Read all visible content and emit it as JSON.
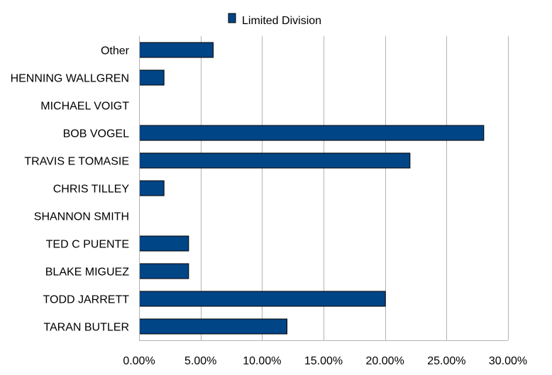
{
  "chart_data": {
    "type": "bar",
    "orientation": "horizontal",
    "categories": [
      "Other",
      "HENNING WALLGREN",
      "MICHAEL VOIGT",
      "BOB VOGEL",
      "TRAVIS E TOMASIE",
      "CHRIS TILLEY",
      "SHANNON SMITH",
      "TED C PUENTE",
      "BLAKE MIGUEZ",
      "TODD JARRETT",
      "TARAN BUTLER"
    ],
    "series": [
      {
        "name": "Limited Division",
        "color": "#004586",
        "values": [
          6,
          2,
          0,
          28,
          22,
          2,
          0,
          4,
          4,
          20,
          12
        ]
      }
    ],
    "xlim": [
      0,
      30
    ],
    "xticks": [
      "0.00%",
      "5.00%",
      "10.00%",
      "15.00%",
      "20.00%",
      "25.00%",
      "30.00%"
    ],
    "xtick_values": [
      0,
      5,
      10,
      15,
      20,
      25,
      30
    ],
    "grid": true,
    "legend_position": "top"
  }
}
